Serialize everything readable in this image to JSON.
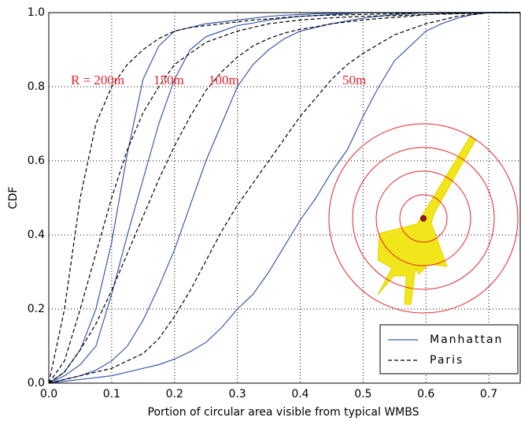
{
  "chart_data": {
    "type": "line",
    "xlabel": "Portion of circular area visible from typical WMBS",
    "ylabel": "CDF",
    "x": [
      0,
      0.025,
      0.05,
      0.075,
      0.1,
      0.125,
      0.15,
      0.175,
      0.2,
      0.225,
      0.25,
      0.275,
      0.3,
      0.325,
      0.35,
      0.375,
      0.4,
      0.425,
      0.45,
      0.475,
      0.5,
      0.525,
      0.55,
      0.575,
      0.6,
      0.625,
      0.65,
      0.675,
      0.7,
      0.725,
      0.75
    ],
    "series": [
      {
        "name": "Manhattan",
        "color": "#3a5ba8",
        "dashed": false,
        "lines": [
          {
            "values": [
              0,
              0.03,
              0.09,
              0.2,
              0.38,
              0.62,
              0.82,
              0.91,
              0.95,
              0.96,
              0.97,
              0.975,
              0.98,
              0.985,
              0.99,
              0.993,
              0.995,
              0.997,
              0.998,
              0.999,
              1,
              1,
              1,
              1,
              1,
              1,
              1,
              1,
              1,
              1,
              1
            ]
          },
          {
            "values": [
              0,
              0.02,
              0.05,
              0.1,
              0.24,
              0.4,
              0.55,
              0.7,
              0.82,
              0.9,
              0.935,
              0.95,
              0.965,
              0.972,
              0.98,
              0.985,
              0.99,
              0.992,
              0.995,
              0.997,
              1,
              1,
              1,
              1,
              1,
              1,
              1,
              1,
              1,
              1,
              1
            ]
          },
          {
            "values": [
              0,
              0.01,
              0.02,
              0.035,
              0.06,
              0.1,
              0.17,
              0.26,
              0.36,
              0.48,
              0.6,
              0.7,
              0.8,
              0.86,
              0.9,
              0.93,
              0.95,
              0.96,
              0.97,
              0.978,
              0.985,
              0.99,
              0.995,
              0.997,
              1,
              1,
              1,
              1,
              1,
              1,
              1
            ]
          },
          {
            "values": [
              0,
              0.005,
              0.01,
              0.015,
              0.02,
              0.03,
              0.04,
              0.05,
              0.065,
              0.085,
              0.11,
              0.15,
              0.2,
              0.24,
              0.3,
              0.37,
              0.44,
              0.5,
              0.57,
              0.63,
              0.72,
              0.8,
              0.87,
              0.91,
              0.95,
              0.97,
              0.985,
              0.995,
              1,
              1,
              1
            ]
          }
        ]
      },
      {
        "name": "Paris",
        "color": "#000000",
        "dashed": true,
        "lines": [
          {
            "values": [
              0,
              0.2,
              0.5,
              0.7,
              0.8,
              0.86,
              0.9,
              0.93,
              0.95,
              0.96,
              0.965,
              0.97,
              0.975,
              0.98,
              0.983,
              0.987,
              0.99,
              0.992,
              0.993,
              0.994,
              0.995,
              0.996,
              0.997,
              0.998,
              1,
              1,
              1,
              1,
              1,
              1,
              1
            ]
          },
          {
            "values": [
              0,
              0.06,
              0.2,
              0.35,
              0.5,
              0.63,
              0.73,
              0.8,
              0.86,
              0.89,
              0.92,
              0.935,
              0.95,
              0.96,
              0.97,
              0.975,
              0.98,
              0.983,
              0.986,
              0.988,
              0.99,
              0.991,
              0.992,
              0.993,
              0.995,
              0.996,
              0.997,
              0.998,
              1,
              1,
              1
            ]
          },
          {
            "values": [
              0,
              0.03,
              0.09,
              0.16,
              0.25,
              0.35,
              0.45,
              0.55,
              0.64,
              0.72,
              0.79,
              0.84,
              0.88,
              0.91,
              0.93,
              0.945,
              0.955,
              0.962,
              0.97,
              0.975,
              0.98,
              0.984,
              0.987,
              0.99,
              0.995,
              0.997,
              0.998,
              0.999,
              1,
              1,
              1
            ]
          },
          {
            "values": [
              0,
              0.01,
              0.02,
              0.03,
              0.04,
              0.06,
              0.08,
              0.12,
              0.18,
              0.25,
              0.33,
              0.41,
              0.48,
              0.54,
              0.6,
              0.66,
              0.72,
              0.77,
              0.82,
              0.86,
              0.89,
              0.915,
              0.94,
              0.955,
              0.97,
              0.98,
              0.99,
              0.995,
              1,
              1,
              1
            ]
          }
        ]
      }
    ],
    "annotations": [
      "R = 200m",
      "150m",
      "100m",
      "50m"
    ],
    "annotation_color": "#e8212b",
    "xlim": [
      0,
      0.75
    ],
    "ylim": [
      0,
      1
    ],
    "xticks": [
      {
        "value": 0,
        "label": "0.0"
      },
      0.1,
      0.2,
      0.3,
      0.4,
      0.5,
      0.6,
      0.7
    ],
    "yticks": [
      {
        "value": 0,
        "label": "0.0"
      },
      0.2,
      0.4,
      0.6,
      0.8,
      {
        "value": 1,
        "label": "1.0"
      }
    ],
    "grid": true,
    "legend_position": "lower right"
  }
}
